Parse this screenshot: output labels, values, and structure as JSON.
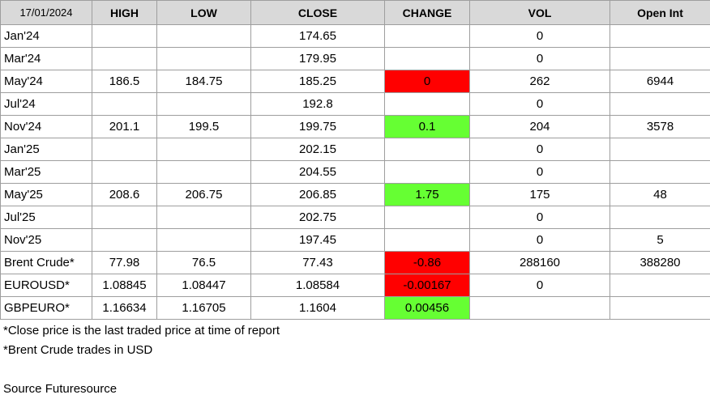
{
  "header": {
    "date": "17/01/2024",
    "columns": [
      "HIGH",
      "LOW",
      "CLOSE",
      "CHANGE",
      "VOL",
      "Open Int"
    ]
  },
  "rows": [
    {
      "label": "Jan'24",
      "high": "",
      "low": "",
      "close": "174.65",
      "change": "",
      "change_status": "",
      "vol": "0",
      "oi": ""
    },
    {
      "label": "Mar'24",
      "high": "",
      "low": "",
      "close": "179.95",
      "change": "",
      "change_status": "",
      "vol": "0",
      "oi": ""
    },
    {
      "label": "May'24",
      "high": "186.5",
      "low": "184.75",
      "close": "185.25",
      "change": "0",
      "change_status": "neg",
      "vol": "262",
      "oi": "6944"
    },
    {
      "label": "Jul'24",
      "high": "",
      "low": "",
      "close": "192.8",
      "change": "",
      "change_status": "",
      "vol": "0",
      "oi": ""
    },
    {
      "label": "Nov'24",
      "high": "201.1",
      "low": "199.5",
      "close": "199.75",
      "change": "0.1",
      "change_status": "pos",
      "vol": "204",
      "oi": "3578"
    },
    {
      "label": "Jan'25",
      "high": "",
      "low": "",
      "close": "202.15",
      "change": "",
      "change_status": "",
      "vol": "0",
      "oi": ""
    },
    {
      "label": "Mar'25",
      "high": "",
      "low": "",
      "close": "204.55",
      "change": "",
      "change_status": "",
      "vol": "0",
      "oi": ""
    },
    {
      "label": "May'25",
      "high": "208.6",
      "low": "206.75",
      "close": "206.85",
      "change": "1.75",
      "change_status": "pos",
      "vol": "175",
      "oi": "48"
    },
    {
      "label": "Jul'25",
      "high": "",
      "low": "",
      "close": "202.75",
      "change": "",
      "change_status": "",
      "vol": "0",
      "oi": ""
    },
    {
      "label": "Nov'25",
      "high": "",
      "low": "",
      "close": "197.45",
      "change": "",
      "change_status": "",
      "vol": "0",
      "oi": "5"
    },
    {
      "label": "Brent Crude*",
      "high": "77.98",
      "low": "76.5",
      "close": "77.43",
      "change": "-0.86",
      "change_status": "neg",
      "vol": "288160",
      "oi": "388280"
    },
    {
      "label": "EUROUSD*",
      "high": "1.08845",
      "low": "1.08447",
      "close": "1.08584",
      "change": "-0.00167",
      "change_status": "neg",
      "vol": "0",
      "oi": ""
    },
    {
      "label": "GBPEURO*",
      "high": "1.16634",
      "low": "1.16705",
      "close": "1.1604",
      "change": "0.00456",
      "change_status": "pos",
      "vol": "",
      "oi": ""
    }
  ],
  "colors": {
    "negative": "#ff0000",
    "positive": "#66ff33",
    "header_bg": "#d9d9d9"
  },
  "notes": [
    "*Close price is the last traded price at time of report",
    "*Brent Crude trades in USD",
    "",
    "Source Futuresource"
  ]
}
